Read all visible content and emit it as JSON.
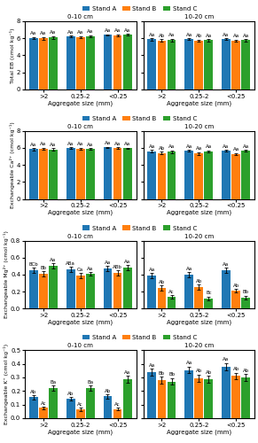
{
  "chart_data": [
    {
      "type": "bar",
      "title": "0-10 cm",
      "xlabel": "Aggregate size (mm)",
      "ylabel": "Total EB (cmol kg⁻¹)",
      "categories": [
        ">2",
        "0.25-2",
        "<0.25"
      ],
      "series": [
        {
          "name": "Stand A",
          "values": [
            6.05,
            6.2,
            6.4
          ],
          "errors": [
            0.12,
            0.1,
            0.08
          ],
          "value_labels": [
            "Aa",
            "Aa",
            "Aa"
          ]
        },
        {
          "name": "Stand B",
          "values": [
            6.0,
            6.15,
            6.38
          ],
          "errors": [
            0.15,
            0.12,
            0.1
          ],
          "value_labels": [
            "Aa",
            "Aa",
            "Aa"
          ]
        },
        {
          "name": "Stand C",
          "values": [
            6.1,
            6.25,
            6.42
          ],
          "errors": [
            0.14,
            0.11,
            0.09
          ],
          "value_labels": [
            "Aa",
            "Aa",
            "Aa"
          ]
        }
      ],
      "ylim": [
        0,
        8
      ],
      "yticks": [
        0,
        2,
        4,
        6,
        8
      ],
      "legend": "lower center"
    },
    {
      "type": "bar",
      "title": "10-20 cm",
      "xlabel": "Aggregate size (mm)",
      "categories": [
        ">2",
        "0.25-2",
        "<0.25"
      ],
      "series": [
        {
          "name": "Stand A",
          "values": [
            5.88,
            5.9,
            5.92
          ],
          "errors": [
            0.14,
            0.12,
            0.1
          ],
          "value_labels": [
            "Aa",
            "Aa",
            "Aa"
          ]
        },
        {
          "name": "Stand B",
          "values": [
            5.72,
            5.72,
            5.72
          ],
          "errors": [
            0.16,
            0.14,
            0.12
          ],
          "value_labels": [
            "Ab",
            "Ab",
            "Aa"
          ]
        },
        {
          "name": "Stand C",
          "values": [
            5.8,
            5.78,
            5.76
          ],
          "errors": [
            0.15,
            0.13,
            0.11
          ],
          "value_labels": [
            "Aa",
            "Aa",
            "Aa"
          ]
        }
      ],
      "ylim": [
        0,
        8
      ],
      "yticks": [
        0,
        2,
        4,
        6,
        8
      ],
      "tick_labels": "x"
    },
    {
      "type": "bar",
      "title": "0-10 cm",
      "xlabel": "Aggregate size (mm)",
      "ylabel": "Exchangeable Ca²⁺ (cmol kg⁻¹)",
      "categories": [
        ">2",
        "0.25-2",
        "<0.25"
      ],
      "series": [
        {
          "name": "Stand A",
          "values": [
            5.85,
            5.95,
            6.05
          ],
          "errors": [
            0.12,
            0.1,
            0.08
          ],
          "value_labels": [
            "Aa",
            "Aa",
            "Aa"
          ]
        },
        {
          "name": "Stand B",
          "values": [
            5.88,
            5.92,
            5.98
          ],
          "errors": [
            0.14,
            0.12,
            0.1
          ],
          "value_labels": [
            "Aa",
            "Aa",
            "Aa"
          ]
        },
        {
          "name": "Stand C",
          "values": [
            5.82,
            5.88,
            5.95
          ],
          "errors": [
            0.13,
            0.11,
            0.09
          ],
          "value_labels": [
            "Aa",
            "Aa",
            "Aa"
          ]
        }
      ],
      "ylim": [
        0,
        8
      ],
      "yticks": [
        0,
        2,
        4,
        6,
        8
      ],
      "legend": "lower center"
    },
    {
      "type": "bar",
      "title": "10-20 cm",
      "xlabel": "Aggregate size (mm)",
      "categories": [
        ">2",
        "0.25-2",
        "<0.25"
      ],
      "series": [
        {
          "name": "Stand A",
          "values": [
            5.62,
            5.65,
            5.65
          ],
          "errors": [
            0.14,
            0.12,
            0.1
          ],
          "value_labels": [
            "Aa",
            "Aa",
            "Aa"
          ]
        },
        {
          "name": "Stand B",
          "values": [
            5.38,
            5.35,
            5.28
          ],
          "errors": [
            0.16,
            0.14,
            0.12
          ],
          "value_labels": [
            "Ab",
            "Aa",
            "Aa"
          ]
        },
        {
          "name": "Stand C",
          "values": [
            5.55,
            5.58,
            5.68
          ],
          "errors": [
            0.15,
            0.13,
            0.11
          ],
          "value_labels": [
            "Aa",
            "Aa",
            "Aa"
          ]
        }
      ],
      "ylim": [
        0,
        8
      ],
      "yticks": [
        0,
        2,
        4,
        6,
        8
      ],
      "tick_labels": "x"
    },
    {
      "type": "bar",
      "title": "0-10 cm",
      "xlabel": "Aggregate size (mm)",
      "ylabel": "Exchangeable Mg²⁺ (cmol kg⁻¹)",
      "categories": [
        ">2",
        "0.25-2",
        "<0.25"
      ],
      "series": [
        {
          "name": "Stand A",
          "values": [
            0.45,
            0.46,
            0.47
          ],
          "errors": [
            0.03,
            0.03,
            0.03
          ],
          "value_labels": [
            "BCb",
            "ABa",
            "Aa"
          ]
        },
        {
          "name": "Stand B",
          "values": [
            0.41,
            0.39,
            0.42
          ],
          "errors": [
            0.03,
            0.03,
            0.03
          ],
          "value_labels": [
            "Bb",
            "Ca",
            "ABb"
          ]
        },
        {
          "name": "Stand C",
          "values": [
            0.5,
            0.41,
            0.48
          ],
          "errors": [
            0.03,
            0.02,
            0.03
          ],
          "value_labels": [
            "Aa",
            "Aa",
            "Aa"
          ]
        }
      ],
      "ylim": [
        0,
        0.8
      ],
      "yticks": [
        0.0,
        0.2,
        0.4,
        0.6,
        0.8
      ],
      "legend": "lower center"
    },
    {
      "type": "bar",
      "title": "10-20 cm",
      "xlabel": "Aggregate size (mm)",
      "categories": [
        ">2",
        "0.25-2",
        "<0.25"
      ],
      "series": [
        {
          "name": "Stand A",
          "values": [
            0.39,
            0.4,
            0.45
          ],
          "errors": [
            0.03,
            0.03,
            0.03
          ],
          "value_labels": [
            "Aa",
            "Aa",
            "Aa"
          ]
        },
        {
          "name": "Stand B",
          "values": [
            0.24,
            0.25,
            0.21
          ],
          "errors": [
            0.03,
            0.03,
            0.02
          ],
          "value_labels": [
            "Ab",
            "Ab",
            "Ab"
          ]
        },
        {
          "name": "Stand C",
          "values": [
            0.14,
            0.12,
            0.13
          ],
          "errors": [
            0.02,
            0.02,
            0.02
          ],
          "value_labels": [
            "Ac",
            "Bc",
            "Bb"
          ]
        }
      ],
      "ylim": [
        0,
        0.8
      ],
      "yticks": [
        0.0,
        0.2,
        0.4,
        0.6,
        0.8
      ],
      "tick_labels": "x"
    },
    {
      "type": "bar",
      "title": "0-10 cm",
      "xlabel": "Aggregate size (mm)",
      "ylabel": "Exchangeable K⁺ (cmol kg⁻¹)",
      "categories": [
        ">2",
        "0.25-2",
        "<0.25"
      ],
      "series": [
        {
          "name": "Stand A",
          "values": [
            0.155,
            0.145,
            0.16
          ],
          "errors": [
            0.015,
            0.012,
            0.015
          ],
          "value_labels": [
            "Ab",
            "Ab",
            "Ab"
          ]
        },
        {
          "name": "Stand B",
          "values": [
            0.075,
            0.065,
            0.068
          ],
          "errors": [
            0.01,
            0.01,
            0.01
          ],
          "value_labels": [
            "Ac",
            "Ac",
            "Ac"
          ]
        },
        {
          "name": "Stand C",
          "values": [
            0.22,
            0.22,
            0.285
          ],
          "errors": [
            0.02,
            0.02,
            0.025
          ],
          "value_labels": [
            "Ba",
            "Ba",
            "Aa"
          ]
        }
      ],
      "ylim": [
        0,
        0.5
      ],
      "yticks": [
        0.0,
        0.1,
        0.2,
        0.3,
        0.4,
        0.5
      ],
      "legend": "lower center"
    },
    {
      "type": "bar",
      "title": "10-20 cm",
      "xlabel": "Aggregate size (mm)",
      "categories": [
        ">2",
        "0.25-2",
        "<0.25"
      ],
      "series": [
        {
          "name": "Stand A",
          "values": [
            0.34,
            0.355,
            0.38
          ],
          "errors": [
            0.025,
            0.025,
            0.025
          ],
          "value_labels": [
            "Aa",
            "Aa",
            "Aa"
          ]
        },
        {
          "name": "Stand B",
          "values": [
            0.28,
            0.295,
            0.31
          ],
          "errors": [
            0.025,
            0.025,
            0.025
          ],
          "value_labels": [
            "Bb",
            "Ab",
            "Ab"
          ]
        },
        {
          "name": "Stand C",
          "values": [
            0.27,
            0.285,
            0.3
          ],
          "errors": [
            0.025,
            0.025,
            0.025
          ],
          "value_labels": [
            "Bb",
            "Ab",
            "Ab"
          ]
        }
      ],
      "ylim": [
        0,
        0.5
      ],
      "yticks": [
        0.0,
        0.1,
        0.2,
        0.3,
        0.4,
        0.5
      ],
      "tick_labels": "x"
    }
  ]
}
